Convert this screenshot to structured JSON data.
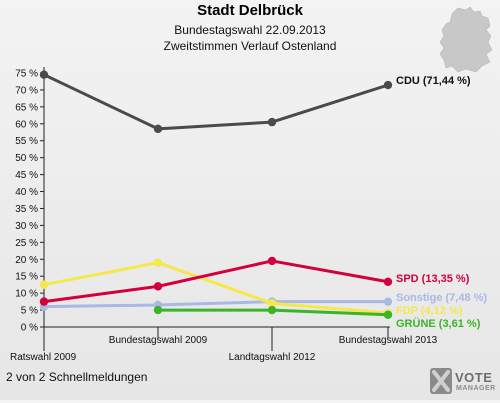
{
  "header": {
    "title": "Stadt Delbrück",
    "subtitle1": "Bundestagswahl 22.09.2013",
    "subtitle2": "Zweitstimmen Verlauf Ostenland"
  },
  "footer": {
    "note": "2 von 2 Schnellmeldungen"
  },
  "logo": {
    "line1": "VOTE",
    "line2": "MANAGER"
  },
  "chart_data": {
    "type": "line",
    "title": "Stadt Delbrück",
    "subtitle": "Bundestagswahl 22.09.2013 — Zweitstimmen Verlauf Ostenland",
    "categories": [
      "Ratswahl 2009",
      "Bundestagswahl 2009",
      "Landtagswahl 2012",
      "Bundestagswahl 2013"
    ],
    "ylim": [
      0,
      75
    ],
    "yticks": [
      0,
      5,
      10,
      15,
      20,
      25,
      30,
      35,
      40,
      45,
      50,
      55,
      60,
      65,
      70,
      75
    ],
    "ytick_suffix": " %",
    "grid": false,
    "series": [
      {
        "name": "CDU",
        "color": "#4a4a4a",
        "values": [
          74.5,
          58.5,
          60.5,
          71.44
        ],
        "end_label": "CDU (71,44 %)"
      },
      {
        "name": "SPD",
        "color": "#d2003c",
        "values": [
          7.5,
          12.0,
          19.5,
          13.35
        ],
        "end_label": "SPD (13,35 %)"
      },
      {
        "name": "Sonstige",
        "color": "#aab8e6",
        "values": [
          6.0,
          6.5,
          7.5,
          7.48
        ],
        "end_label": "Sonstige (7,48 %)"
      },
      {
        "name": "FDP",
        "color": "#f5e84a",
        "values": [
          12.5,
          19.0,
          7.0,
          4.12
        ],
        "end_label": "FDP (4,12 %)"
      },
      {
        "name": "GRÜNE",
        "color": "#3cb428",
        "values": [
          null,
          5.0,
          5.0,
          3.61
        ],
        "end_label": "GRÜNE (3,61 %)"
      }
    ]
  }
}
